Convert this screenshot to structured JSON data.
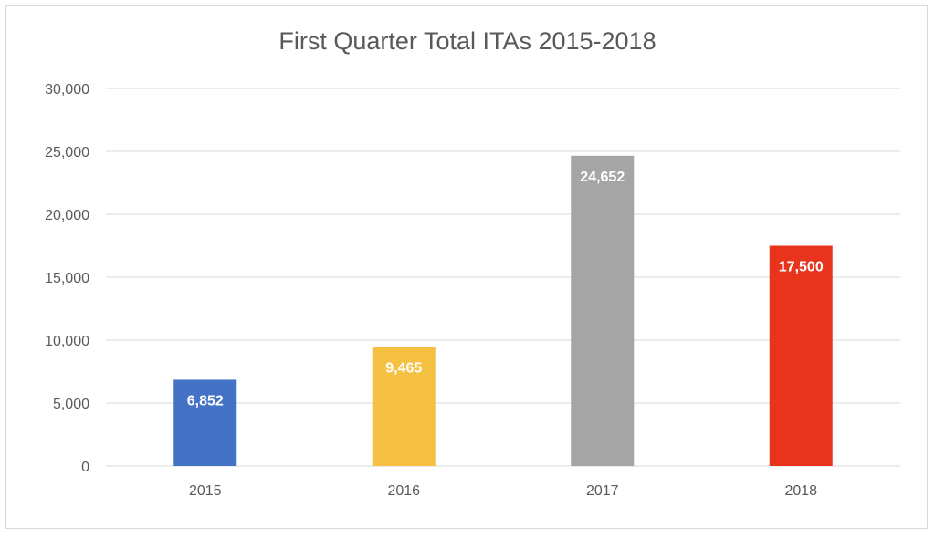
{
  "chart_data": {
    "type": "bar",
    "title": "First Quarter Total ITAs 2015-2018",
    "categories": [
      "2015",
      "2016",
      "2017",
      "2018"
    ],
    "values": [
      6852,
      9465,
      24652,
      17500
    ],
    "data_labels": [
      "6,852",
      "9,465",
      "24,652",
      "17,500"
    ],
    "bar_colors": [
      "#4472c4",
      "#f6c142",
      "#a5a5a5",
      "#e8341c"
    ],
    "ylim": [
      0,
      30000
    ],
    "yticks": [
      0,
      5000,
      10000,
      15000,
      20000,
      25000,
      30000
    ],
    "ytick_labels": [
      "0",
      "5,000",
      "10,000",
      "15,000",
      "20,000",
      "25,000",
      "30,000"
    ],
    "grid": true,
    "legend": "none"
  }
}
